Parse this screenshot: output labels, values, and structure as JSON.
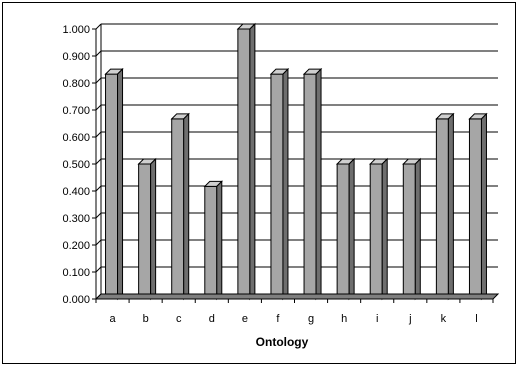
{
  "chart_data": {
    "type": "bar",
    "categories": [
      "a",
      "b",
      "c",
      "d",
      "e",
      "f",
      "g",
      "h",
      "i",
      "j",
      "k",
      "l"
    ],
    "values": [
      0.833,
      0.5,
      0.667,
      0.417,
      1.0,
      0.833,
      0.833,
      0.5,
      0.5,
      0.5,
      0.667,
      0.667
    ],
    "title": "",
    "xlabel": "Ontology",
    "ylabel": "",
    "ylim": [
      0,
      1
    ],
    "yticks": [
      "0.000",
      "0.100",
      "0.200",
      "0.300",
      "0.400",
      "0.500",
      "0.600",
      "0.700",
      "0.800",
      "0.900",
      "1.000"
    ],
    "grid": true,
    "colors": {
      "bar_front": "#a6a6a6",
      "bar_top": "#cfcfcf",
      "bar_side": "#6e6e6e",
      "floor": "#7f7f7f",
      "grid": "#000000"
    }
  }
}
